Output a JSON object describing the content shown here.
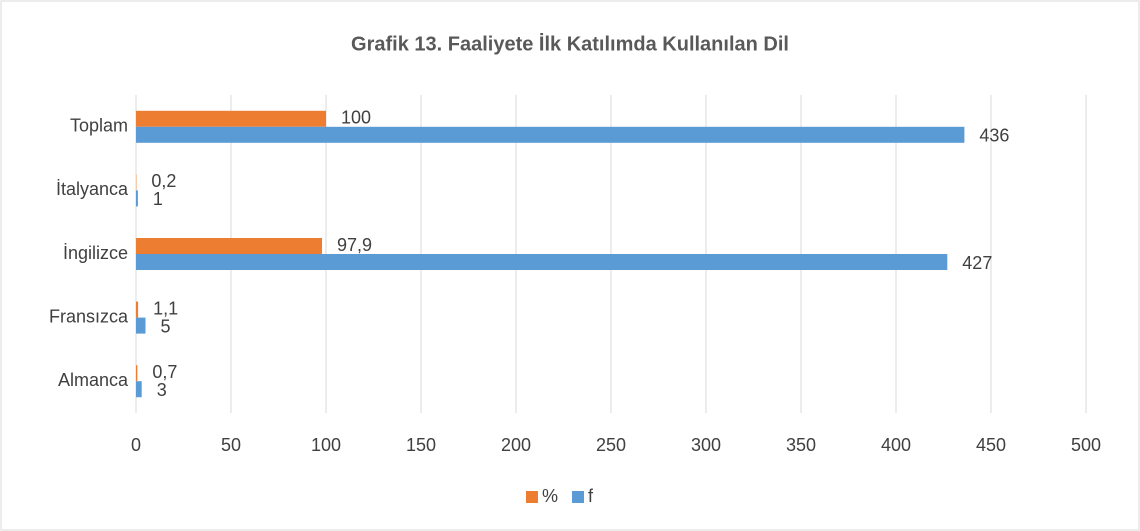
{
  "chart_data": {
    "type": "bar",
    "orientation": "horizontal",
    "title": "Grafik 13. Faaliyete İlk Katılımda Kullanılan Dil",
    "categories": [
      "Almanca",
      "Fransızca",
      "İngilizce",
      "İtalyanca",
      "Toplam"
    ],
    "series": [
      {
        "name": "%",
        "color": "#ed7d31",
        "values": [
          0.7,
          1.1,
          97.9,
          0.2,
          100
        ],
        "value_labels": [
          "0,7",
          "1,1",
          "97,9",
          "0,2",
          "100"
        ]
      },
      {
        "name": "f",
        "color": "#5b9bd5",
        "values": [
          3,
          5,
          427,
          1,
          436
        ]
      }
    ],
    "xlim": [
      0,
      500
    ],
    "xticks": [
      0,
      50,
      100,
      150,
      200,
      250,
      300,
      350,
      400,
      450,
      500
    ],
    "grid": true,
    "legend": "bottom"
  }
}
